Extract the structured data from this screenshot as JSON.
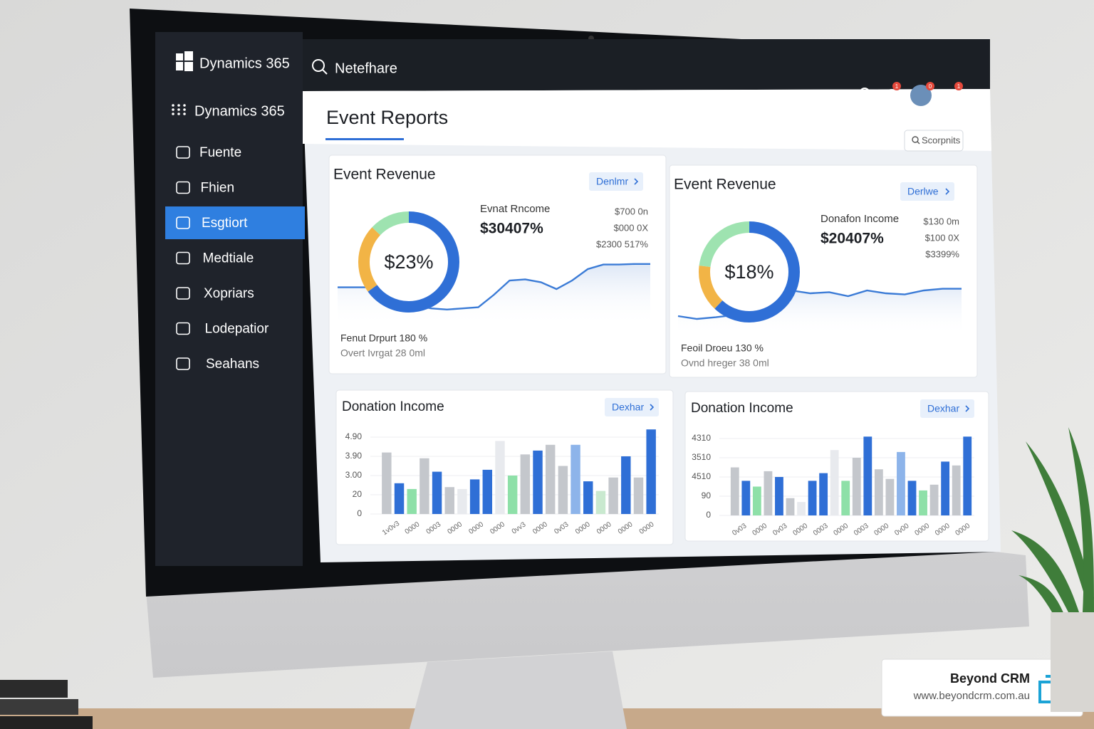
{
  "brand": "Dynamics 365",
  "search_text": "Netefhare",
  "apps_title": "Dynamics 365",
  "nav": [
    "Fuente",
    "Fhien",
    "Esgtiort",
    "Medtiale",
    "Xopriars",
    "Lodepatior",
    "Seahans"
  ],
  "active_nav": 2,
  "badges": [
    "1",
    "0",
    "1"
  ],
  "page_title": "Event Reports",
  "search_button": "Scorpnits",
  "revenue_cards": [
    {
      "title": "Event Revenue",
      "button": "Denlmr",
      "donut_label": "$23%",
      "segments": [
        {
          "value": 65,
          "color": "#2f6fd6"
        },
        {
          "value": 22,
          "color": "#f2b446"
        },
        {
          "value": 13,
          "color": "#9ee3b0"
        }
      ],
      "metric_label": "Evnat Rncome",
      "metric_value": "$30407%",
      "side_values": [
        "$700 0n",
        "$000 0X",
        "$2300 517%"
      ],
      "line": [
        43,
        43,
        43,
        43,
        30,
        10,
        6,
        4,
        6,
        8,
        30,
        55,
        57,
        52,
        40,
        55,
        75,
        83,
        83,
        84,
        84
      ],
      "footer": [
        "Fenut Drpurt 180 %",
        "Overt Ivrgat 28 0ml"
      ]
    },
    {
      "title": "Event Revenue",
      "button": "Derlwe",
      "donut_label": "$18%",
      "segments": [
        {
          "value": 62,
          "color": "#2f6fd6"
        },
        {
          "value": 15,
          "color": "#f2b446"
        },
        {
          "value": 23,
          "color": "#9ee3b0"
        }
      ],
      "metric_label": "Donafon Income",
      "metric_value": "$20407%",
      "side_values": [
        "$130 0m",
        "$100 0X",
        "$3399%"
      ],
      "line": [
        10,
        5,
        8,
        12,
        40,
        70,
        55,
        50,
        52,
        45,
        55,
        50,
        48,
        55,
        58,
        58
      ],
      "footer": [
        "Feoil Droeu 130 %",
        "Ovnd hreger 38 0ml"
      ]
    }
  ],
  "bar_cards": [
    {
      "title": "Donation Income",
      "button": "Dexhar",
      "axis_labels": [
        "4.90",
        "3.90",
        "3.00",
        "20",
        "0"
      ],
      "bars": [
        {
          "value": 3.2,
          "color": "#c4c7cc"
        },
        {
          "value": 1.6,
          "color": "#2f6fd6"
        },
        {
          "value": 1.3,
          "color": "#8ee0a8"
        },
        {
          "value": 2.9,
          "color": "#c4c7cc"
        },
        {
          "value": 2.2,
          "color": "#2f6fd6"
        },
        {
          "value": 1.4,
          "color": "#c4c7cc"
        },
        {
          "value": 1.3,
          "color": "#e8eaee"
        },
        {
          "value": 1.8,
          "color": "#2f6fd6"
        },
        {
          "value": 2.3,
          "color": "#2f6fd6"
        },
        {
          "value": 3.8,
          "color": "#e8eaee"
        },
        {
          "value": 2.0,
          "color": "#8ee0a8"
        },
        {
          "value": 3.1,
          "color": "#c4c7cc"
        },
        {
          "value": 3.3,
          "color": "#2f6fd6"
        },
        {
          "value": 3.6,
          "color": "#c4c7cc"
        },
        {
          "value": 2.5,
          "color": "#c4c7cc"
        },
        {
          "value": 3.6,
          "color": "#8db4ea"
        },
        {
          "value": 1.7,
          "color": "#2f6fd6"
        },
        {
          "value": 1.2,
          "color": "#c9e9cf"
        },
        {
          "value": 1.9,
          "color": "#c4c7cc"
        },
        {
          "value": 3.0,
          "color": "#2f6fd6"
        },
        {
          "value": 1.9,
          "color": "#c4c7cc"
        },
        {
          "value": 4.4,
          "color": "#2f6fd6"
        }
      ],
      "x_labels": [
        "1v0v3",
        "0000",
        "0003",
        "0000",
        "0000",
        "0000",
        "0vv3",
        "0000",
        "0v03",
        "0000",
        "0000",
        "0000",
        "0000"
      ]
    },
    {
      "title": "Donation Income",
      "button": "Dexhar",
      "axis_labels": [
        "4310",
        "3510",
        "4510",
        "90",
        "0"
      ],
      "bars": [
        {
          "value": 2.5,
          "color": "#c4c7cc"
        },
        {
          "value": 1.8,
          "color": "#2f6fd6"
        },
        {
          "value": 1.5,
          "color": "#8ee0a8"
        },
        {
          "value": 2.3,
          "color": "#c4c7cc"
        },
        {
          "value": 2.0,
          "color": "#2f6fd6"
        },
        {
          "value": 0.9,
          "color": "#c4c7cc"
        },
        {
          "value": 0.7,
          "color": "#e8eaee"
        },
        {
          "value": 1.8,
          "color": "#2f6fd6"
        },
        {
          "value": 2.2,
          "color": "#2f6fd6"
        },
        {
          "value": 3.4,
          "color": "#e8eaee"
        },
        {
          "value": 1.8,
          "color": "#8ee0a8"
        },
        {
          "value": 3.0,
          "color": "#c4c7cc"
        },
        {
          "value": 4.1,
          "color": "#2f6fd6"
        },
        {
          "value": 2.4,
          "color": "#c4c7cc"
        },
        {
          "value": 1.9,
          "color": "#c4c7cc"
        },
        {
          "value": 3.3,
          "color": "#8db4ea"
        },
        {
          "value": 1.8,
          "color": "#2f6fd6"
        },
        {
          "value": 1.3,
          "color": "#8ee0a8"
        },
        {
          "value": 1.6,
          "color": "#c4c7cc"
        },
        {
          "value": 2.8,
          "color": "#2f6fd6"
        },
        {
          "value": 2.6,
          "color": "#c4c7cc"
        },
        {
          "value": 4.1,
          "color": "#2f6fd6"
        }
      ],
      "x_labels": [
        "0v03",
        "0000",
        "0v03",
        "0000",
        "0003",
        "0000",
        "0003",
        "0000",
        "0v00",
        "0000",
        "0000",
        "0000"
      ]
    }
  ],
  "logo_name": "Beyond CRM",
  "logo_url": "www.beyondcrm.com.au"
}
